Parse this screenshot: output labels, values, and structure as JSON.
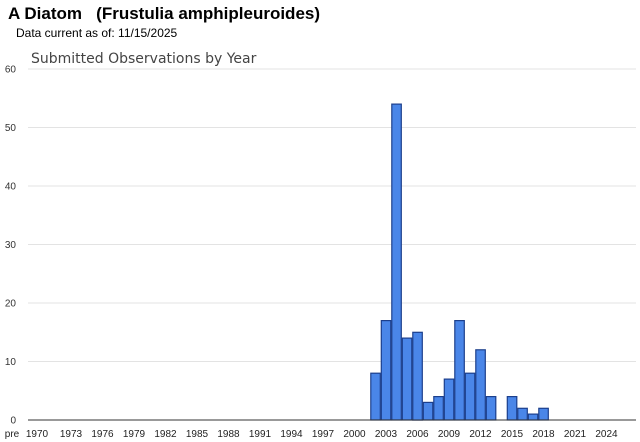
{
  "header": {
    "title": "A Diatom   (Frustulia amphipleuroides)",
    "data_current": "Data current as of: 11/15/2025"
  },
  "chart_data": {
    "type": "bar",
    "title": "Submitted Observations by Year",
    "xlabel": "",
    "ylabel": "",
    "ylim": [
      0,
      60
    ],
    "yticks": [
      0,
      10,
      20,
      30,
      40,
      50,
      60
    ],
    "grid": true,
    "legend": "none",
    "bar_color": "#4a86e8",
    "bar_border_color": "#1c3f8c",
    "x_tick_labels": [
      "pre",
      "1970",
      "1973",
      "1976",
      "1979",
      "1982",
      "1985",
      "1988",
      "1991",
      "1994",
      "1997",
      "2000",
      "2003",
      "2006",
      "2009",
      "2012",
      "2015",
      "2018",
      "2021",
      "2024"
    ],
    "categories": [
      "2002",
      "2003",
      "2004",
      "2005",
      "2006",
      "2007",
      "2008",
      "2009",
      "2010",
      "2011",
      "2012",
      "2013",
      "2014",
      "2015",
      "2016",
      "2017",
      "2018"
    ],
    "values": [
      8,
      17,
      54,
      14,
      15,
      3,
      4,
      7,
      17,
      8,
      12,
      4,
      0,
      4,
      2,
      1,
      2
    ]
  }
}
